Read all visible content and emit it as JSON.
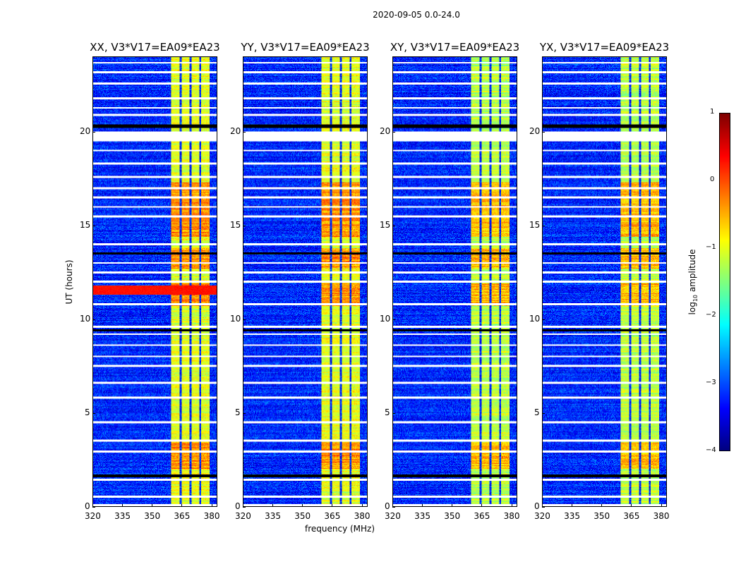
{
  "chart_data": {
    "type": "heatmap",
    "title": "2020-09-05 0.0-24.0",
    "xlabel": "frequency (MHz)",
    "ylabel": "UT (hours)",
    "xlim": [
      320,
      383
    ],
    "ylim": [
      0,
      24
    ],
    "xticks": [
      320,
      335,
      350,
      365,
      380
    ],
    "yticks": [
      0,
      5,
      10,
      15,
      20
    ],
    "panels": [
      {
        "title": "XX, V3*V17=EA09*EA23",
        "strong_rfi_row_hours": [
          11.3,
          11.8
        ]
      },
      {
        "title": "YY, V3*V17=EA09*EA23"
      },
      {
        "title": "XY, V3*V17=EA09*EA23"
      },
      {
        "title": "YX, V3*V17=EA09*EA23"
      }
    ],
    "bright_band_mhz": [
      360,
      379.5
    ],
    "band_gaps_mhz": [
      364.6,
      369.6,
      374.6
    ],
    "background_log_amp": -3.2,
    "band_log_amp": -1.0,
    "strong_epochs_hours": [
      [
        2.0,
        3.4
      ],
      [
        10.7,
        11.9
      ],
      [
        12.7,
        13.8
      ],
      [
        14.4,
        17.3
      ]
    ],
    "flagged_gap_hours": [
      19.5,
      20.0
    ],
    "colorbar": {
      "label": "log₁₀ amplitude",
      "colormap": "jet",
      "range": [
        -4,
        1
      ],
      "ticks": [
        "1",
        "0",
        "−1",
        "−2",
        "−3",
        "−4"
      ],
      "tick_values": [
        1,
        0,
        -1,
        -2,
        -3,
        -4
      ]
    }
  }
}
